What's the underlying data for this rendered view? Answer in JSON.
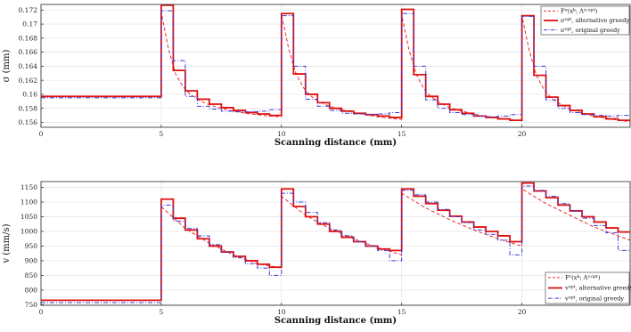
{
  "chart_data": [
    {
      "type": "line",
      "xlabel": "Scanning distance (mm)",
      "ylabel": "σ (mm)",
      "xlim": [
        0,
        24.5
      ],
      "ylim": [
        0.1553,
        0.1728
      ],
      "xticks": [
        0,
        5,
        10,
        15,
        20
      ],
      "yticks": [
        0.156,
        0.158,
        0.16,
        0.162,
        0.164,
        0.166,
        0.168,
        0.17,
        0.172
      ],
      "ytick_labels": [
        "0.156",
        "0.158",
        "0.16",
        "0.162",
        "0.164",
        "0.166",
        "0.168",
        "0.17",
        "0.172"
      ],
      "grid": true,
      "legend_position": "top-right",
      "series": [
        {
          "name": "F^σ(x^k; Λ^{σ,opt})",
          "style": "dashed",
          "color": "#e8302a",
          "x": [
            0,
            5,
            5,
            5.3,
            5.6,
            5.9,
            6.2,
            6.6,
            7.0,
            7.5,
            8.0,
            8.5,
            9.0,
            9.5,
            10,
            10,
            10.3,
            10.6,
            10.9,
            11.2,
            11.6,
            12.0,
            12.5,
            13.0,
            13.5,
            14.0,
            14.5,
            15,
            15,
            15.3,
            15.6,
            15.9,
            16.2,
            16.6,
            17.0,
            17.5,
            18.0,
            18.5,
            19.0,
            19.5,
            20,
            20,
            20.3,
            20.6,
            20.9,
            21.2,
            21.6,
            22.0,
            22.5,
            23.0,
            23.5,
            24.0,
            24.5
          ],
          "y": [
            0.1597,
            0.1597,
            0.1717,
            0.1665,
            0.1629,
            0.1611,
            0.16,
            0.1591,
            0.1585,
            0.158,
            0.1576,
            0.1573,
            0.1571,
            0.1569,
            0.1568,
            0.1714,
            0.1665,
            0.163,
            0.161,
            0.1598,
            0.1589,
            0.1583,
            0.1578,
            0.1574,
            0.1571,
            0.1568,
            0.1566,
            0.1564,
            0.1713,
            0.1664,
            0.1629,
            0.1609,
            0.1597,
            0.1588,
            0.1581,
            0.1576,
            0.1572,
            0.1568,
            0.1566,
            0.1564,
            0.1562,
            0.1712,
            0.1663,
            0.1627,
            0.1608,
            0.1595,
            0.1586,
            0.1579,
            0.1573,
            0.1569,
            0.1566,
            0.1563,
            0.1561
          ]
        },
        {
          "name": "σ^opt, alternative greedy",
          "style": "solid",
          "color": "#e01010",
          "step": true,
          "x": [
            0,
            5,
            5.5,
            6,
            6.5,
            7,
            7.5,
            8,
            8.5,
            9,
            9.5,
            10,
            10.5,
            11,
            11.5,
            12,
            12.5,
            13,
            13.5,
            14,
            14.5,
            15,
            15.5,
            16,
            16.5,
            17,
            17.5,
            18,
            18.5,
            19,
            19.5,
            20,
            20.5,
            21,
            21.5,
            22,
            22.5,
            23,
            23.5,
            24
          ],
          "y": [
            0.1597,
            0.1727,
            0.1634,
            0.1605,
            0.1593,
            0.1586,
            0.1581,
            0.1577,
            0.1574,
            0.1572,
            0.157,
            0.1715,
            0.1629,
            0.16,
            0.1588,
            0.158,
            0.1576,
            0.1573,
            0.1571,
            0.1569,
            0.1567,
            0.1721,
            0.1628,
            0.1597,
            0.1586,
            0.1578,
            0.1573,
            0.1569,
            0.1567,
            0.1565,
            0.1563,
            0.1712,
            0.1627,
            0.1596,
            0.1584,
            0.1577,
            0.1572,
            0.1568,
            0.1565,
            0.1563
          ]
        },
        {
          "name": "σ^opt, original greedy",
          "style": "dashdot",
          "color": "#3a3adf",
          "step": true,
          "x": [
            0,
            5,
            5.5,
            6,
            6.5,
            7,
            7.5,
            8,
            8.5,
            9,
            9.5,
            10,
            10.5,
            11,
            11.5,
            12,
            12.5,
            13,
            13.5,
            14,
            14.5,
            15,
            15.5,
            16,
            16.5,
            17,
            17.5,
            18,
            18.5,
            19,
            19.5,
            20,
            20.5,
            21,
            21.5,
            22,
            22.5,
            23,
            23.5,
            24
          ],
          "y": [
            0.1595,
            0.1719,
            0.1648,
            0.1597,
            0.1583,
            0.1579,
            0.1576,
            0.1575,
            0.1575,
            0.1576,
            0.1578,
            0.1712,
            0.164,
            0.1593,
            0.1583,
            0.1577,
            0.1573,
            0.1572,
            0.1571,
            0.1572,
            0.1574,
            0.1715,
            0.164,
            0.1592,
            0.158,
            0.1574,
            0.1571,
            0.1569,
            0.1568,
            0.1569,
            0.1571,
            0.1711,
            0.164,
            0.1592,
            0.158,
            0.1574,
            0.1571,
            0.157,
            0.1569,
            0.157
          ]
        }
      ]
    },
    {
      "type": "line",
      "xlabel": "Scanning distance (mm)",
      "ylabel": "v (mm/s)",
      "xlim": [
        0,
        24.5
      ],
      "ylim": [
        748,
        1170
      ],
      "xticks": [
        0,
        5,
        10,
        15,
        20
      ],
      "yticks": [
        750,
        800,
        850,
        900,
        950,
        1000,
        1050,
        1100,
        1150
      ],
      "ytick_labels": [
        "750",
        "800",
        "850",
        "900",
        "950",
        "1000",
        "1050",
        "1100",
        "1150"
      ],
      "grid": true,
      "legend_position": "bottom-right",
      "series": [
        {
          "name": "F^v(x^k; Λ^{v,opt})",
          "style": "dashed",
          "color": "#e8302a",
          "x": [
            0,
            5,
            5,
            6,
            7,
            8,
            9,
            10,
            10,
            11,
            12,
            13,
            14,
            15,
            15,
            16,
            17,
            18,
            19,
            20,
            20,
            21,
            22,
            23,
            24,
            24.5
          ],
          "y": [
            765,
            765,
            1085,
            1010,
            960,
            920,
            890,
            875,
            1120,
            1055,
            1010,
            975,
            945,
            920,
            1130,
            1080,
            1040,
            1005,
            975,
            950,
            1145,
            1095,
            1055,
            1015,
            985,
            970
          ]
        },
        {
          "name": "v^opt, alternative greedy",
          "style": "solid",
          "color": "#e01010",
          "step": true,
          "x": [
            0,
            5,
            5.5,
            6,
            6.5,
            7,
            7.5,
            8,
            8.5,
            9,
            9.5,
            10,
            10.5,
            11,
            11.5,
            12,
            12.5,
            13,
            13.5,
            14,
            14.5,
            15,
            15.5,
            16,
            16.5,
            17,
            17.5,
            18,
            18.5,
            19,
            19.5,
            20,
            20.5,
            21,
            21.5,
            22,
            22.5,
            23,
            23.5,
            24
          ],
          "y": [
            765,
            1110,
            1045,
            1005,
            975,
            950,
            930,
            915,
            900,
            888,
            878,
            1145,
            1085,
            1050,
            1025,
            1000,
            980,
            965,
            950,
            940,
            935,
            1145,
            1120,
            1095,
            1072,
            1052,
            1032,
            1015,
            1000,
            985,
            965,
            1165,
            1138,
            1115,
            1090,
            1070,
            1050,
            1032,
            1012,
            998
          ]
        },
        {
          "name": "v^opt, original greedy",
          "style": "dashdot",
          "color": "#3a3adf",
          "step": true,
          "x": [
            0,
            5,
            5.5,
            6,
            6.5,
            7,
            7.5,
            8,
            8.5,
            9,
            9.5,
            10,
            10.5,
            11,
            11.5,
            12,
            12.5,
            13,
            13.5,
            14,
            14.5,
            15,
            15.5,
            16,
            16.5,
            17,
            17.5,
            18,
            18.5,
            19,
            19.5,
            20,
            20.5,
            21,
            21.5,
            22,
            22.5,
            23,
            23.5,
            24
          ],
          "y": [
            757,
            1090,
            1035,
            1010,
            985,
            955,
            930,
            910,
            890,
            875,
            850,
            1130,
            1100,
            1065,
            1030,
            1005,
            985,
            965,
            950,
            935,
            900,
            1140,
            1125,
            1100,
            1075,
            1050,
            1030,
            1005,
            990,
            970,
            920,
            1155,
            1140,
            1120,
            1095,
            1070,
            1045,
            1020,
            995,
            935
          ]
        }
      ]
    }
  ]
}
